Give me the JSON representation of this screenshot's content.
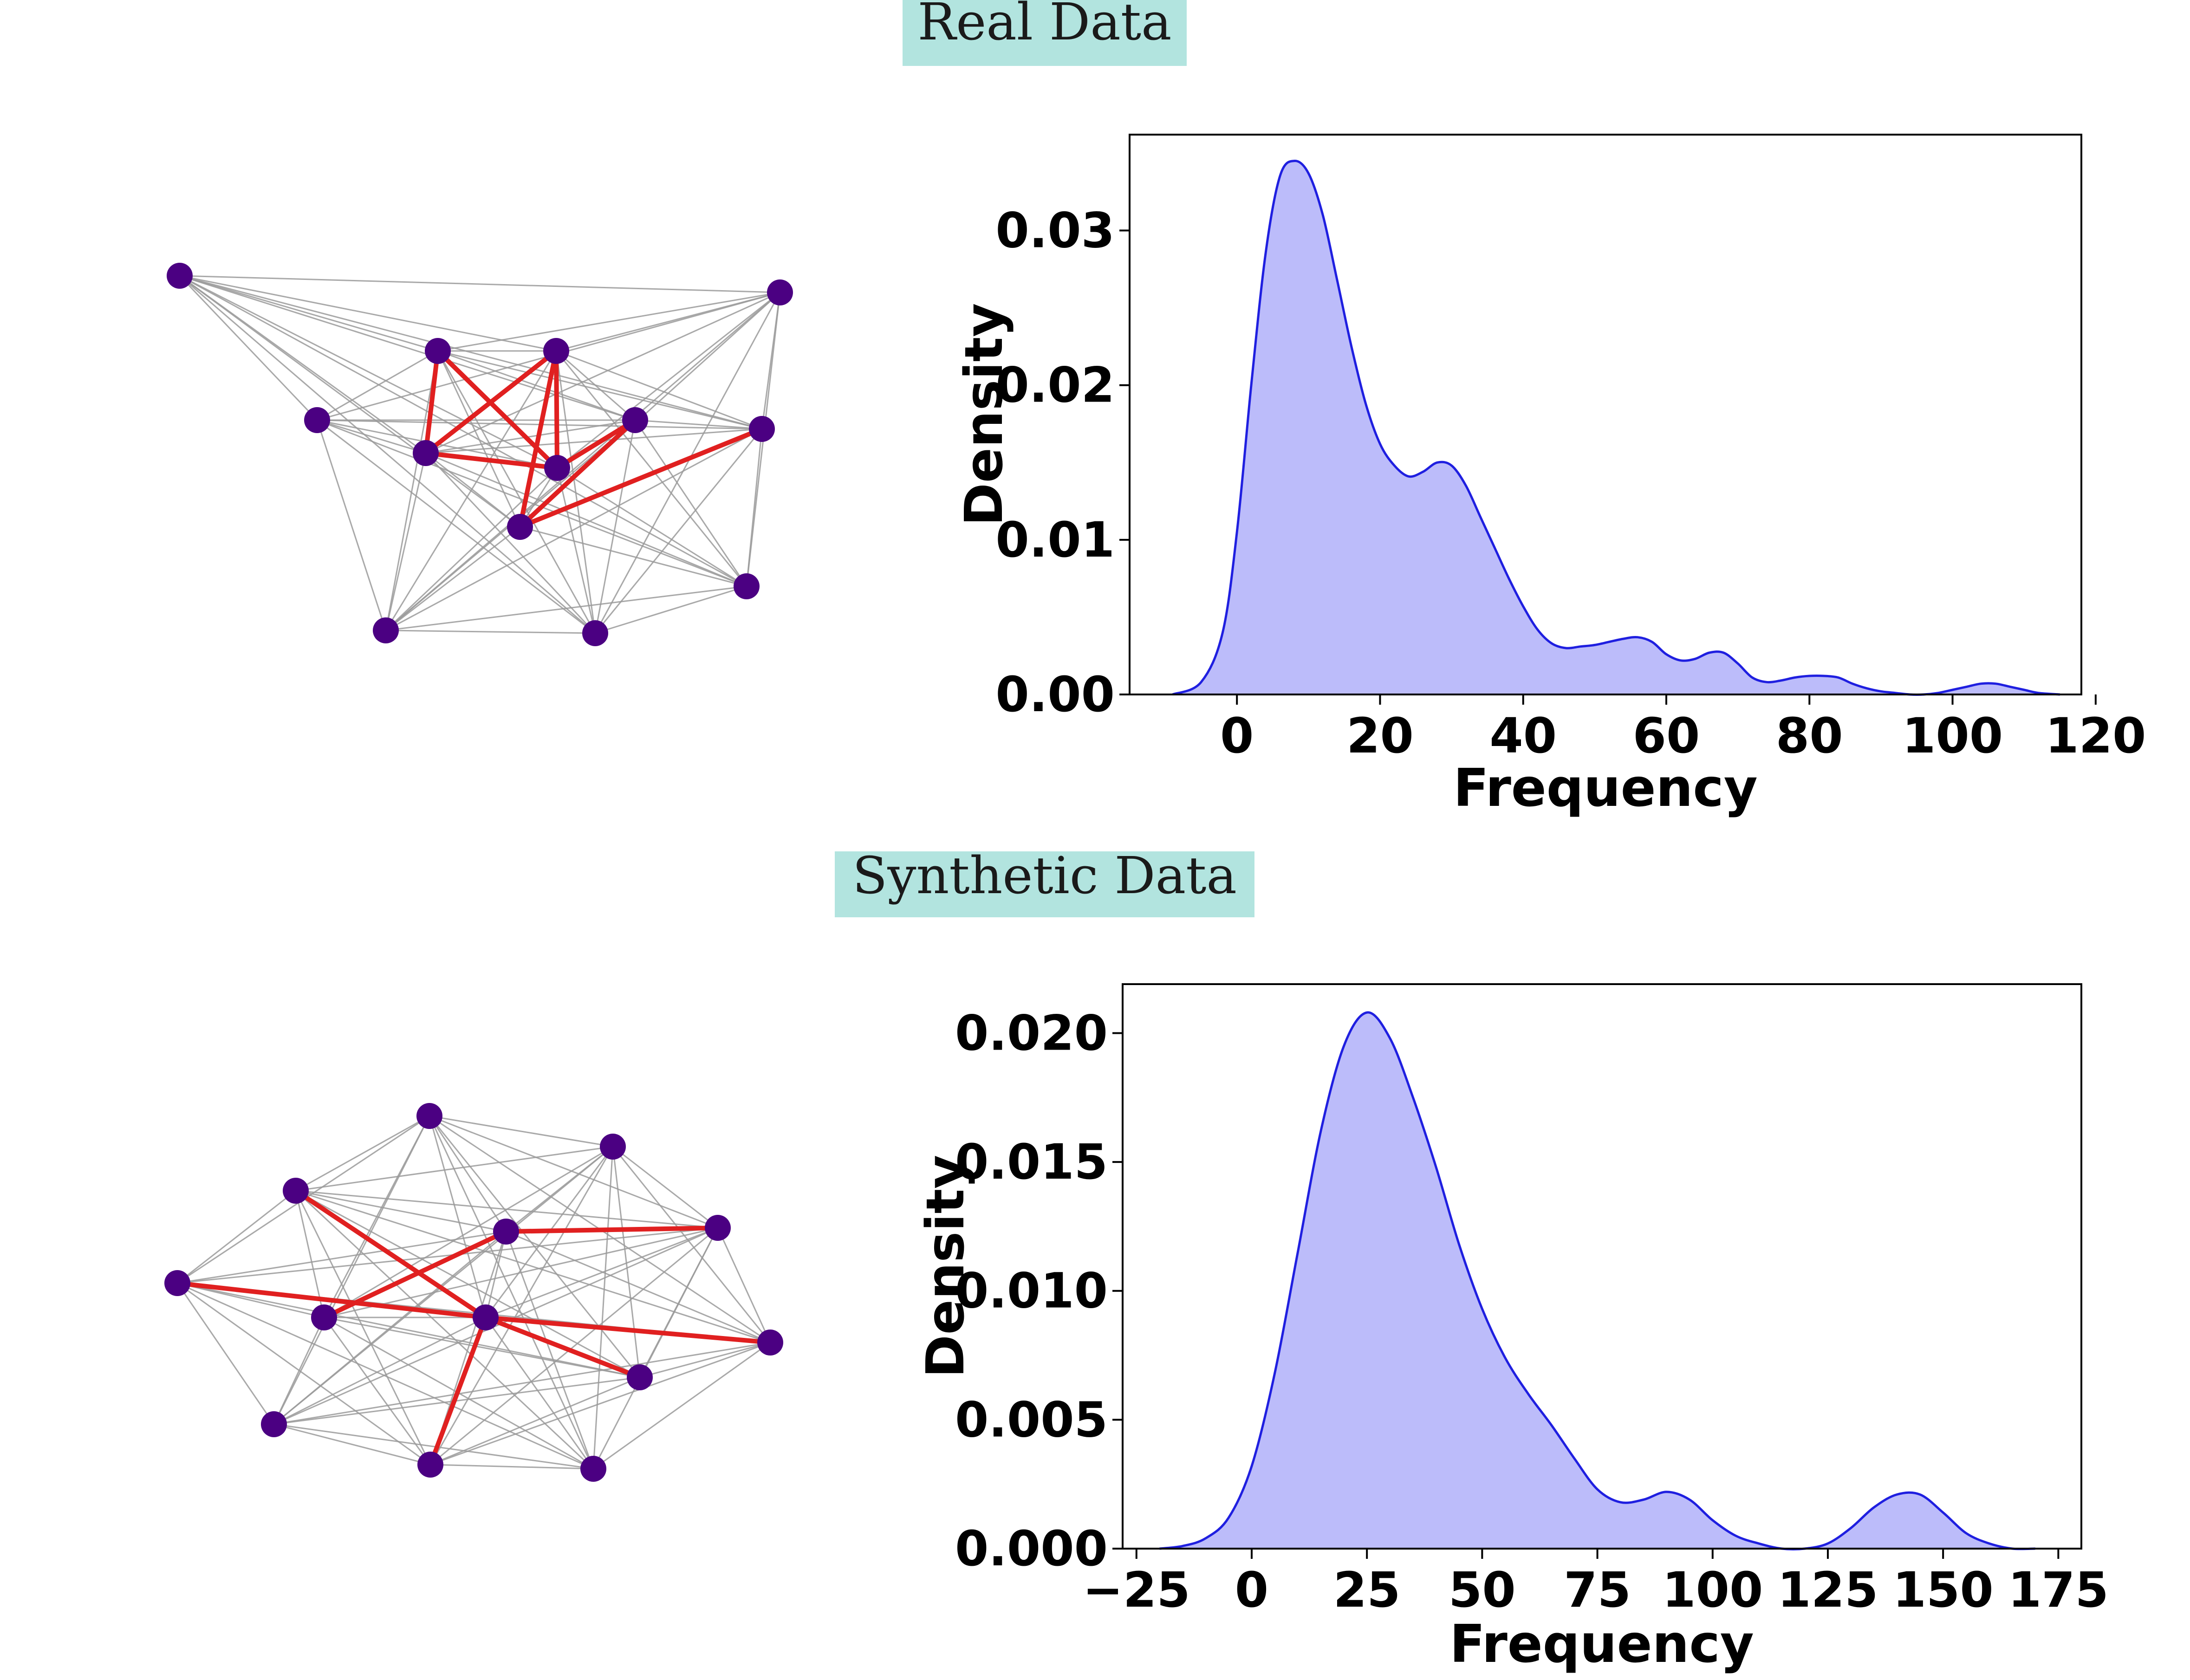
{
  "colors": {
    "label_bg": "#b2e4df",
    "kde_fill": "#bcbcfa",
    "kde_line": "#1f1fe0",
    "node": "#4b0082",
    "edge": "#9a9a9a",
    "highlight_edge": "#e02020"
  },
  "sections": [
    {
      "title": "Real Data"
    },
    {
      "title": "Synthetic Data"
    }
  ],
  "chart_data": [
    {
      "type": "area",
      "name": "real-data-kde",
      "xlabel": "Frequency",
      "ylabel": "Density",
      "xlim": [
        -15,
        118
      ],
      "ylim": [
        0,
        0.0362
      ],
      "xticks": [
        0,
        20,
        40,
        60,
        80,
        100,
        120
      ],
      "xtick_labels": [
        "0",
        "20",
        "40",
        "60",
        "80",
        "100",
        "120"
      ],
      "yticks": [
        0.0,
        0.01,
        0.02,
        0.03
      ],
      "ytick_labels": [
        "0.00",
        "0.01",
        "0.02",
        "0.03"
      ],
      "x": [
        -9,
        -5,
        -2,
        0,
        2,
        4,
        6,
        8,
        10,
        12,
        14,
        16,
        18,
        20,
        22,
        24,
        26,
        28,
        30,
        32,
        34,
        36,
        38,
        40,
        42,
        44,
        46,
        48,
        50,
        52,
        54,
        56,
        58,
        60,
        62,
        64,
        66,
        68,
        70,
        72,
        74,
        76,
        78,
        80,
        82,
        84,
        86,
        88,
        90,
        92,
        94,
        96,
        98,
        100,
        102,
        104,
        106,
        108,
        110,
        112,
        115
      ],
      "y": [
        0.0,
        0.0008,
        0.004,
        0.0105,
        0.02,
        0.0285,
        0.0335,
        0.0345,
        0.0337,
        0.031,
        0.0268,
        0.0225,
        0.0188,
        0.0162,
        0.0148,
        0.0141,
        0.0144,
        0.015,
        0.0148,
        0.0135,
        0.0115,
        0.0095,
        0.0075,
        0.0057,
        0.0042,
        0.0033,
        0.003,
        0.0031,
        0.0032,
        0.0034,
        0.0036,
        0.0037,
        0.0034,
        0.0026,
        0.0022,
        0.0023,
        0.0027,
        0.0027,
        0.002,
        0.0011,
        0.0008,
        0.0009,
        0.0011,
        0.0012,
        0.0012,
        0.0011,
        0.0007,
        0.0004,
        0.0002,
        0.0001,
        0.0,
        0.0,
        0.0001,
        0.0003,
        0.0005,
        0.0007,
        0.0007,
        0.0005,
        0.0003,
        0.0001,
        0.0
      ]
    },
    {
      "type": "area",
      "name": "synthetic-data-kde",
      "xlabel": "Frequency",
      "ylabel": "Density",
      "xlim": [
        -28,
        180
      ],
      "ylim": [
        0,
        0.0219
      ],
      "xticks": [
        -25,
        0,
        25,
        50,
        75,
        100,
        125,
        150,
        175
      ],
      "xtick_labels": [
        "−25",
        "0",
        "25",
        "50",
        "75",
        "100",
        "125",
        "150",
        "175"
      ],
      "yticks": [
        0.0,
        0.005,
        0.01,
        0.015,
        0.02
      ],
      "ytick_labels": [
        "0.000",
        "0.005",
        "0.010",
        "0.015",
        "0.020"
      ],
      "x": [
        -20,
        -15,
        -10,
        -5,
        0,
        5,
        10,
        15,
        20,
        25,
        30,
        35,
        40,
        45,
        50,
        55,
        60,
        65,
        70,
        75,
        80,
        85,
        90,
        95,
        100,
        105,
        110,
        115,
        120,
        125,
        130,
        135,
        140,
        145,
        150,
        155,
        160,
        165,
        170
      ],
      "y": [
        0.0,
        0.0001,
        0.0004,
        0.0012,
        0.0032,
        0.0068,
        0.0115,
        0.0162,
        0.0195,
        0.0208,
        0.0198,
        0.0175,
        0.0148,
        0.0118,
        0.0093,
        0.0074,
        0.006,
        0.0048,
        0.0035,
        0.0023,
        0.0018,
        0.0019,
        0.0022,
        0.0019,
        0.0011,
        0.0005,
        0.0002,
        0.0,
        0.0,
        0.0002,
        0.0008,
        0.0016,
        0.0021,
        0.0021,
        0.0014,
        0.0006,
        0.0002,
        0.0,
        0.0
      ]
    }
  ]
}
